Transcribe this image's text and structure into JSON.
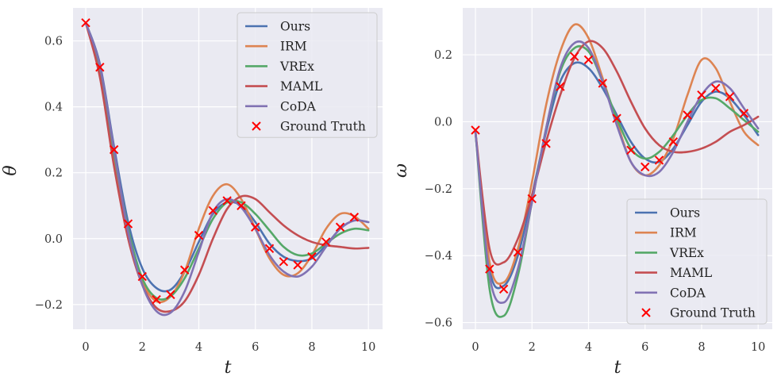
{
  "chart_data": [
    {
      "type": "line",
      "xlabel": "t",
      "ylabel": "θ",
      "xlim": [
        -0.45,
        10.5
      ],
      "ylim": [
        -0.275,
        0.7
      ],
      "xticks": [
        0,
        2,
        4,
        6,
        8,
        10
      ],
      "yticks": [
        -0.2,
        0.0,
        0.2,
        0.4,
        0.6
      ],
      "ytick_labels": [
        "−0.2",
        "0.0",
        "0.2",
        "0.4",
        "0.6"
      ],
      "legend": "top-right",
      "grid": true,
      "x": [
        0,
        0.5,
        1,
        1.5,
        2,
        2.5,
        3,
        3.5,
        4,
        4.5,
        5,
        5.5,
        6,
        6.5,
        7,
        7.5,
        8,
        8.5,
        9,
        9.5,
        10
      ],
      "series": [
        {
          "name": "Ours",
          "color": "#4c72b0",
          "values": [
            0.655,
            0.53,
            0.28,
            0.05,
            -0.09,
            -0.15,
            -0.155,
            -0.1,
            -0.01,
            0.075,
            0.11,
            0.1,
            0.05,
            -0.015,
            -0.055,
            -0.068,
            -0.06,
            -0.02,
            0.03,
            0.055,
            0.05
          ]
        },
        {
          "name": "IRM",
          "color": "#dd8452",
          "values": [
            0.655,
            0.5,
            0.24,
            0.01,
            -0.13,
            -0.19,
            -0.175,
            -0.1,
            0.03,
            0.13,
            0.165,
            0.12,
            0.03,
            -0.06,
            -0.11,
            -0.105,
            -0.05,
            0.03,
            0.075,
            0.068,
            0.03
          ]
        },
        {
          "name": "VREx",
          "color": "#55a868",
          "values": [
            0.655,
            0.52,
            0.26,
            0.03,
            -0.12,
            -0.18,
            -0.175,
            -0.12,
            -0.03,
            0.06,
            0.11,
            0.11,
            0.075,
            0.025,
            -0.025,
            -0.05,
            -0.045,
            -0.015,
            0.015,
            0.03,
            0.025
          ]
        },
        {
          "name": "MAML",
          "color": "#c44e52",
          "values": [
            0.655,
            0.49,
            0.22,
            0.0,
            -0.14,
            -0.21,
            -0.22,
            -0.19,
            -0.11,
            0.0,
            0.09,
            0.128,
            0.12,
            0.08,
            0.04,
            0.01,
            -0.01,
            -0.02,
            -0.025,
            -0.03,
            -0.028
          ]
        },
        {
          "name": "CoDA",
          "color": "#8172b3",
          "values": [
            0.655,
            0.525,
            0.27,
            0.02,
            -0.14,
            -0.22,
            -0.225,
            -0.16,
            -0.04,
            0.08,
            0.12,
            0.095,
            0.03,
            -0.05,
            -0.1,
            -0.115,
            -0.085,
            -0.025,
            0.03,
            0.055,
            0.05
          ]
        }
      ],
      "ground_truth": {
        "name": "Ground Truth",
        "color": "#ff0000",
        "x": [
          0,
          0.5,
          1,
          1.5,
          2,
          2.5,
          3,
          3.5,
          4,
          4.5,
          5,
          5.5,
          6,
          6.5,
          7,
          7.5,
          8,
          8.5,
          9,
          9.5
        ],
        "y": [
          0.655,
          0.52,
          0.27,
          0.045,
          -0.115,
          -0.185,
          -0.17,
          -0.095,
          0.01,
          0.085,
          0.115,
          0.1,
          0.035,
          -0.03,
          -0.07,
          -0.08,
          -0.055,
          -0.01,
          0.035,
          0.065
        ]
      }
    },
    {
      "type": "line",
      "xlabel": "t",
      "ylabel": "ω",
      "xlim": [
        -0.45,
        10.5
      ],
      "ylim": [
        -0.62,
        0.34
      ],
      "xticks": [
        0,
        2,
        4,
        6,
        8,
        10
      ],
      "yticks": [
        -0.6,
        -0.4,
        -0.2,
        0.0,
        0.2
      ],
      "ytick_labels": [
        "−0.6",
        "−0.4",
        "−0.2",
        "0.0",
        "0.2"
      ],
      "legend": "bottom-right",
      "grid": true,
      "x": [
        0,
        0.5,
        1,
        1.5,
        2,
        2.5,
        3,
        3.5,
        4,
        4.5,
        5,
        5.5,
        6,
        6.5,
        7,
        7.5,
        8,
        8.5,
        9,
        9.5,
        10
      ],
      "series": [
        {
          "name": "Ours",
          "color": "#4c72b0",
          "values": [
            -0.03,
            -0.44,
            -0.49,
            -0.4,
            -0.22,
            -0.03,
            0.12,
            0.175,
            0.16,
            0.1,
            0.02,
            -0.06,
            -0.11,
            -0.12,
            -0.08,
            -0.01,
            0.06,
            0.09,
            0.07,
            0.02,
            -0.04
          ]
        },
        {
          "name": "IRM",
          "color": "#dd8452",
          "values": [
            -0.03,
            -0.42,
            -0.48,
            -0.38,
            -0.18,
            0.05,
            0.21,
            0.29,
            0.25,
            0.13,
            0.0,
            -0.12,
            -0.16,
            -0.13,
            -0.05,
            0.08,
            0.185,
            0.16,
            0.06,
            -0.03,
            -0.07
          ]
        },
        {
          "name": "VREx",
          "color": "#55a868",
          "values": [
            -0.03,
            -0.5,
            -0.58,
            -0.46,
            -0.24,
            -0.02,
            0.15,
            0.22,
            0.21,
            0.12,
            0.01,
            -0.08,
            -0.11,
            -0.09,
            -0.04,
            0.02,
            0.065,
            0.07,
            0.04,
            0.005,
            -0.03
          ]
        },
        {
          "name": "MAML",
          "color": "#c44e52",
          "values": [
            -0.03,
            -0.38,
            -0.42,
            -0.35,
            -0.22,
            -0.06,
            0.08,
            0.19,
            0.24,
            0.22,
            0.15,
            0.06,
            -0.02,
            -0.07,
            -0.09,
            -0.09,
            -0.08,
            -0.06,
            -0.03,
            -0.01,
            0.015
          ]
        },
        {
          "name": "CoDA",
          "color": "#8172b3",
          "values": [
            -0.03,
            -0.46,
            -0.54,
            -0.44,
            -0.24,
            -0.02,
            0.16,
            0.235,
            0.22,
            0.12,
            -0.01,
            -0.12,
            -0.16,
            -0.15,
            -0.09,
            0.0,
            0.08,
            0.12,
            0.1,
            0.04,
            -0.02
          ]
        }
      ],
      "ground_truth": {
        "name": "Ground Truth",
        "color": "#ff0000",
        "x": [
          0,
          0.5,
          1,
          1.5,
          2,
          2.5,
          3,
          3.5,
          4,
          4.5,
          5,
          5.5,
          6,
          6.5,
          7,
          7.5,
          8,
          8.5,
          9,
          9.5
        ],
        "y": [
          -0.025,
          -0.44,
          -0.5,
          -0.39,
          -0.23,
          -0.065,
          0.105,
          0.195,
          0.185,
          0.115,
          0.01,
          -0.085,
          -0.135,
          -0.115,
          -0.06,
          0.02,
          0.08,
          0.1,
          0.075,
          0.025
        ]
      }
    }
  ]
}
